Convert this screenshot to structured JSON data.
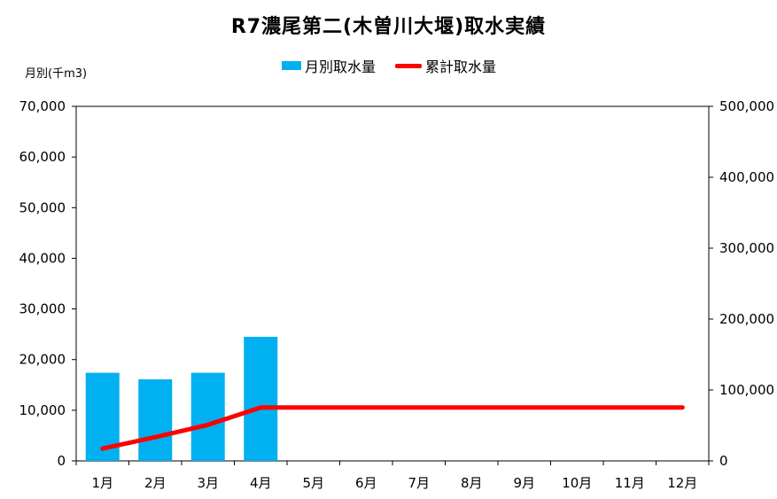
{
  "chart_data": {
    "type": "bar",
    "title": "R7濃尾第二(木曽川大堰)取水実績",
    "left_axis_label": "月別(千m3)",
    "categories": [
      "1月",
      "2月",
      "3月",
      "4月",
      "5月",
      "6月",
      "7月",
      "8月",
      "9月",
      "10月",
      "11月",
      "12月"
    ],
    "series": [
      {
        "name": "月別取水量",
        "type": "bar",
        "axis": "left",
        "color": "#00B0F0",
        "values": [
          17400,
          16100,
          17400,
          24500,
          null,
          null,
          null,
          null,
          null,
          null,
          null,
          null
        ]
      },
      {
        "name": "累計取水量",
        "type": "line",
        "axis": "right",
        "color": "#FF0000",
        "values": [
          17400,
          33500,
          50900,
          75400,
          75400,
          75400,
          75400,
          75400,
          75400,
          75400,
          75400,
          75400
        ]
      }
    ],
    "left_axis": {
      "ylim": [
        0,
        70000
      ],
      "ticks": [
        "0",
        "10,000",
        "20,000",
        "30,000",
        "40,000",
        "50,000",
        "60,000",
        "70,000"
      ]
    },
    "right_axis": {
      "ylim": [
        0,
        500000
      ],
      "ticks": [
        "0",
        "100,000",
        "200,000",
        "300,000",
        "400,000",
        "500,000"
      ]
    },
    "grid": false,
    "legend_position": "top-center"
  }
}
